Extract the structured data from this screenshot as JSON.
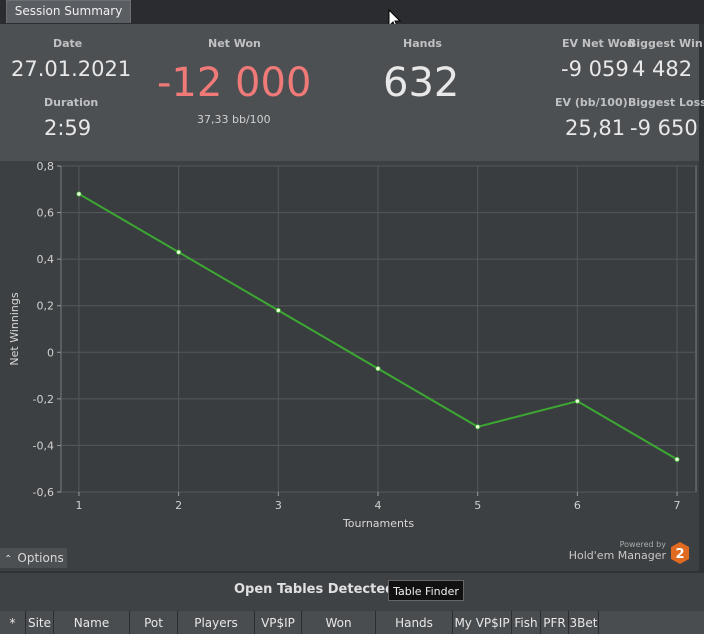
{
  "tab": {
    "label": "Session Summary"
  },
  "summary": {
    "date_label": "Date",
    "date_value": "27.01.2021",
    "duration_label": "Duration",
    "duration_value": "2:59",
    "net_won_label": "Net Won",
    "net_won_value": "-12 000",
    "bb100": "37,33 bb/100",
    "hands_label": "Hands",
    "hands_value": "632",
    "ev_net_won_label": "EV Net Won",
    "ev_net_won_value": "-9 059",
    "biggest_win_label": "Biggest Win",
    "biggest_win_value": "4 482",
    "ev_bb100_label": "EV (bb/100)",
    "ev_bb100_value": "25,81",
    "biggest_loss_label": "Biggest Loss",
    "biggest_loss_value": "-9 650",
    "negative_color": "#f07a78"
  },
  "chart_data": {
    "type": "line",
    "xlabel": "Tournaments",
    "ylabel": "Net Winnings",
    "x": [
      1,
      2,
      3,
      4,
      5,
      6,
      7
    ],
    "x_ticks": [
      "1",
      "2",
      "3",
      "4",
      "5",
      "6",
      "7"
    ],
    "series": [
      {
        "values": [
          0.68,
          0.43,
          0.18,
          -0.07,
          -0.32,
          -0.21,
          -0.46
        ],
        "color": "#3ca832"
      }
    ],
    "ylim": [
      -0.6,
      0.8
    ],
    "y_ticks": [
      "0,8",
      "0,6",
      "0,4",
      "0,2",
      "0",
      "-0,2",
      "-0,4",
      "-0,6"
    ],
    "grid": true
  },
  "options": {
    "label": "Options",
    "icon": "chevron-up-icon"
  },
  "branding": {
    "powered_by": "Powered by",
    "product": "Hold'em Manager",
    "badge": "2"
  },
  "open_tables": {
    "title": "Open Tables Detected",
    "button": "Table Finder",
    "columns": [
      "*",
      "Site",
      "Name",
      "Pot",
      "Players",
      "VP$IP",
      "Won",
      "Hands",
      "My VP$IP",
      "Fish",
      "PFR",
      "3Bet"
    ]
  }
}
